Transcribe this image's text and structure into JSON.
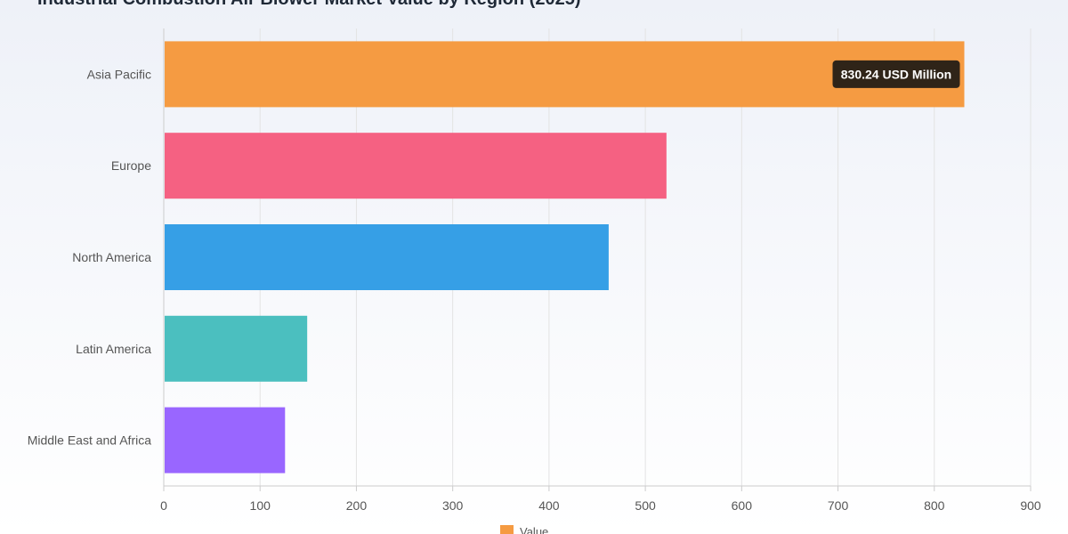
{
  "chart_data": {
    "type": "bar",
    "orientation": "horizontal",
    "title": "Industrial Combustion Air Blower Market Value by Region (2025)",
    "categories": [
      "Asia Pacific",
      "Europe",
      "North America",
      "Latin America",
      "Middle East and Africa"
    ],
    "series": [
      {
        "name": "Value",
        "values": [
          830.24,
          521,
          461,
          148,
          125
        ],
        "colors": [
          "#f59b42",
          "#f56182",
          "#369fe6",
          "#4bbfbf",
          "#9966ff"
        ]
      }
    ],
    "xlim": [
      0,
      900
    ],
    "xticks": [
      0,
      100,
      200,
      300,
      400,
      500,
      600,
      700,
      800,
      900
    ],
    "grid": true,
    "legend_position": "bottom",
    "legend_color": "#f59b42",
    "tooltip": {
      "text": "830.24 USD Million",
      "category": "Asia Pacific"
    }
  }
}
